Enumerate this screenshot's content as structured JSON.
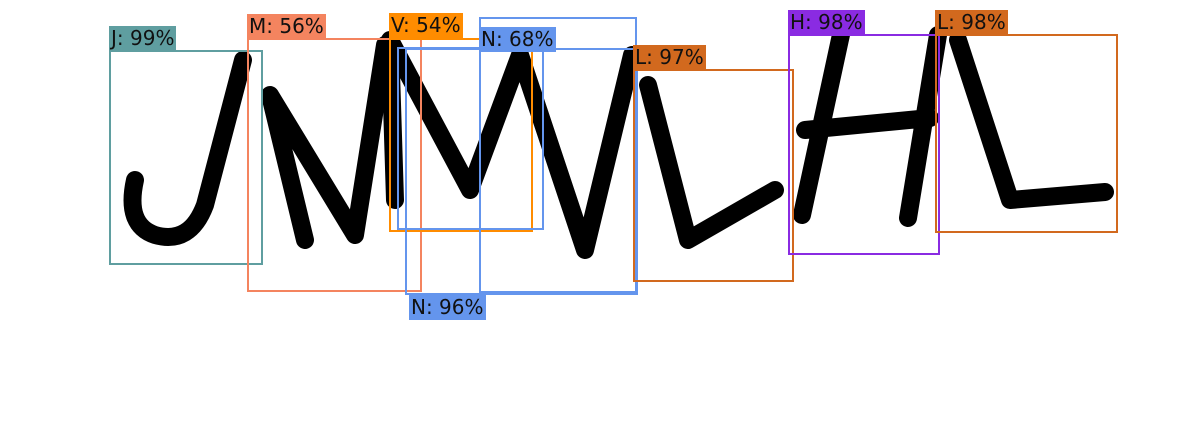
{
  "detections": [
    {
      "label": "J: 99%",
      "color": "#5f9ea0"
    },
    {
      "label": "M: 56%",
      "color": "#f4845f"
    },
    {
      "label": "V: 54%",
      "color": "#ff8c00"
    },
    {
      "label": "N: 68%",
      "color": "#6495ed"
    },
    {
      "label": "N: 96%",
      "color": "#6495ed"
    },
    {
      "label": "L: 97%",
      "color": "#d2691e"
    },
    {
      "label": "H: 98%",
      "color": "#8a2be2"
    },
    {
      "label": "L: 98%",
      "color": "#d2691e"
    }
  ]
}
